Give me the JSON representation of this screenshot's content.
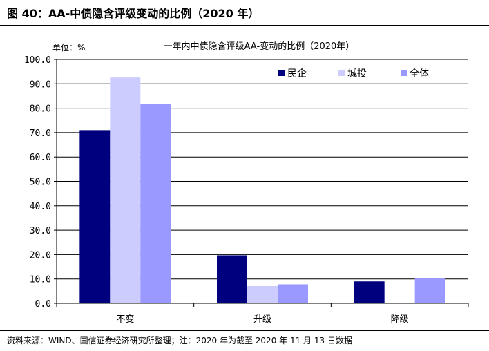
{
  "figure": {
    "title": "图  40：AA-中债隐含评级变动的比例（2020 年）",
    "source": "资料来源：WIND、国信证券经济研究所整理；注：2020 年为截至 2020 年 11 月 13 日数据"
  },
  "chart_data": {
    "type": "bar",
    "title": "一年内中债隐含评级AA-变动的比例（2020年）",
    "unit_label": "单位：%",
    "categories": [
      "不变",
      "升级",
      "降级"
    ],
    "series": [
      {
        "name": "民企",
        "color": "#00007f",
        "values": [
          71.0,
          19.7,
          9.0
        ]
      },
      {
        "name": "城投",
        "color": "#ccccff",
        "values": [
          92.6,
          7.1,
          0
        ]
      },
      {
        "name": "全体",
        "color": "#9999ff",
        "values": [
          81.7,
          7.8,
          10.2
        ]
      }
    ],
    "yticks": [
      "0.0",
      "10.0",
      "20.0",
      "30.0",
      "40.0",
      "50.0",
      "60.0",
      "70.0",
      "80.0",
      "90.0",
      "100.0"
    ],
    "ylim": [
      0,
      100
    ],
    "grid": true,
    "legend": "top-right"
  }
}
